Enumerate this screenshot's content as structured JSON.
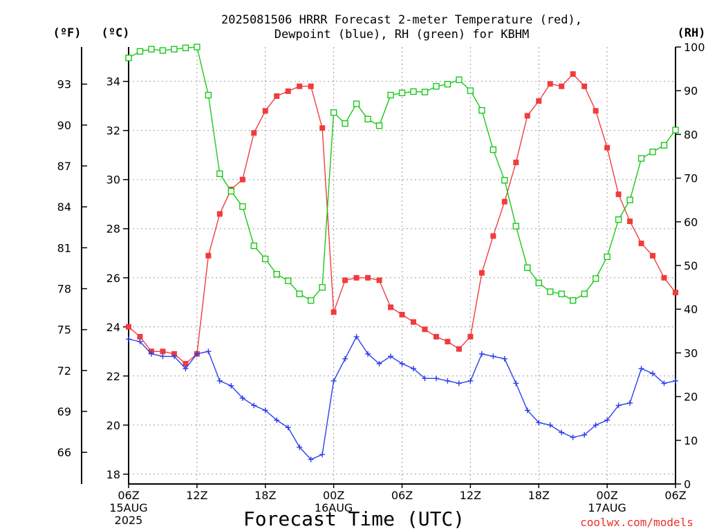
{
  "title_line1": "2025081506 HRRR Forecast 2-meter Temperature (red),",
  "title_line2": "Dewpoint (blue), RH (green) for KBHM",
  "unit_f": "(ºF)",
  "unit_c": "(ºC)",
  "unit_rh": "(RH)",
  "xlabel": "Forecast Time (UTC)",
  "credit": "coolwx.com/models",
  "colors": {
    "temp": "#f03c3c",
    "dewpoint": "#2a3cf0",
    "rh": "#18c818",
    "grid": "#9a9a9a"
  },
  "chart_data": {
    "type": "line",
    "title": "2025081506 HRRR Forecast 2-meter Temperature (red), Dewpoint (blue), RH (green) for KBHM",
    "xlabel": "Forecast Time (UTC)",
    "x_unit": "forecast hour",
    "xlim": [
      0,
      48
    ],
    "x_ticks": [
      {
        "x": 0,
        "label": [
          "06Z",
          "15AUG",
          "2025"
        ]
      },
      {
        "x": 6,
        "label": [
          "12Z"
        ]
      },
      {
        "x": 12,
        "label": [
          "18Z"
        ]
      },
      {
        "x": 18,
        "label": [
          "00Z",
          "16AUG"
        ]
      },
      {
        "x": 24,
        "label": [
          "06Z"
        ]
      },
      {
        "x": 30,
        "label": [
          "12Z"
        ]
      },
      {
        "x": 36,
        "label": [
          "18Z"
        ]
      },
      {
        "x": 42,
        "label": [
          "00Z",
          "17AUG"
        ]
      },
      {
        "x": 48,
        "label": [
          "06Z"
        ]
      }
    ],
    "y_left_c": {
      "label": "(ºC)",
      "lim": [
        17.6,
        35.4
      ],
      "ticks": [
        18,
        20,
        22,
        24,
        26,
        28,
        30,
        32,
        34
      ]
    },
    "y_left_f": {
      "label": "(ºF)",
      "ticks": [
        66,
        69,
        72,
        75,
        78,
        81,
        84,
        87,
        90,
        93
      ]
    },
    "y_right_rh": {
      "label": "(RH)",
      "lim": [
        0,
        100
      ],
      "ticks": [
        0,
        10,
        20,
        30,
        40,
        50,
        60,
        70,
        80,
        90,
        100
      ]
    },
    "series": [
      {
        "name": "Temperature",
        "axis": "c",
        "marker": "filled-square",
        "values": [
          24.0,
          23.6,
          23.0,
          23.0,
          22.9,
          22.5,
          22.9,
          26.9,
          28.6,
          29.6,
          30.0,
          31.9,
          32.8,
          33.4,
          33.6,
          33.8,
          33.8,
          32.1,
          24.6,
          25.9,
          26.0,
          26.0,
          25.9,
          24.8,
          24.5,
          24.2,
          23.9,
          23.6,
          23.4,
          23.1,
          23.6,
          26.2,
          27.7,
          29.1,
          30.7,
          32.6,
          33.2,
          33.9,
          33.8,
          34.3,
          33.8,
          32.8,
          31.3,
          29.4,
          28.3,
          27.4,
          26.9,
          26.0,
          25.4
        ]
      },
      {
        "name": "Dewpoint",
        "axis": "c",
        "marker": "plus",
        "values": [
          23.5,
          23.4,
          22.9,
          22.8,
          22.8,
          22.3,
          22.9,
          23.0,
          21.8,
          21.6,
          21.1,
          20.8,
          20.6,
          20.2,
          19.9,
          19.1,
          18.6,
          18.8,
          21.8,
          22.7,
          23.6,
          22.9,
          22.5,
          22.8,
          22.5,
          22.3,
          21.9,
          21.9,
          21.8,
          21.7,
          21.8,
          22.9,
          22.8,
          22.7,
          21.7,
          20.6,
          20.1,
          20.0,
          19.7,
          19.5,
          19.6,
          20.0,
          20.2,
          20.8,
          20.9,
          22.3,
          22.1,
          21.7,
          21.8
        ]
      },
      {
        "name": "RH",
        "axis": "rh",
        "marker": "open-square",
        "values": [
          97.5,
          99.0,
          99.5,
          99.2,
          99.5,
          99.8,
          100.0,
          89.0,
          71.0,
          67.0,
          63.5,
          54.5,
          51.5,
          48.0,
          46.5,
          43.5,
          42.0,
          45.0,
          85.0,
          82.5,
          87.0,
          83.5,
          82.0,
          89.0,
          89.5,
          89.8,
          89.7,
          91.0,
          91.5,
          92.5,
          90.0,
          85.5,
          76.5,
          69.5,
          59.0,
          49.5,
          46.0,
          44.0,
          43.5,
          42.0,
          43.5,
          47.0,
          52.0,
          60.5,
          65.0,
          74.5,
          76.0,
          77.5,
          81.0
        ]
      }
    ]
  }
}
